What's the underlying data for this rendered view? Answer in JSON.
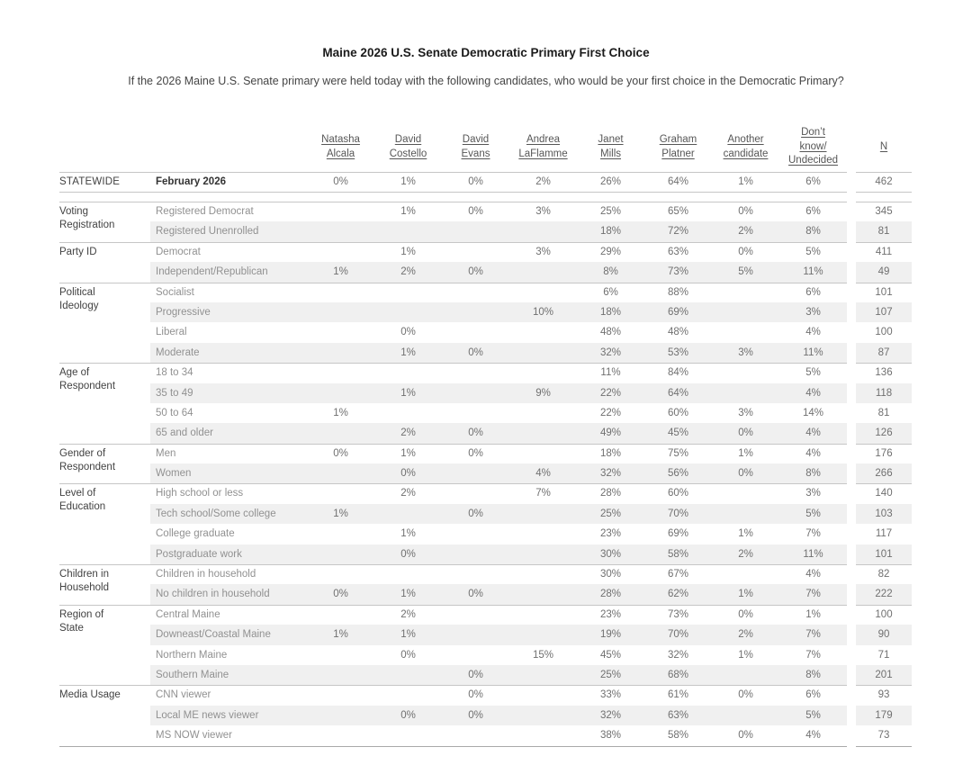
{
  "title": "Maine 2026 U.S. Senate Democratic Primary First Choice",
  "subtitle": "If the 2026 Maine U.S. Senate primary were held today with the following candidates, who would be your first choice in the Democratic Primary?",
  "colors": {
    "title_text": "#1b1b1b",
    "subtitle_text": "#454545",
    "header_text": "#565656",
    "category_text": "#424242",
    "subgroup_text": "#919191",
    "value_text": "#707070",
    "row_shade": "#f0f0f0",
    "grid_line": "#c6c6c6",
    "bottom_line": "#a9a9a9"
  },
  "chart_data": {
    "type": "table",
    "columns": [
      "Natasha Alcala",
      "David Costello",
      "David Evans",
      "Andrea LaFlamme",
      "Janet Mills",
      "Graham Platner",
      "Another candidate",
      "Don’t know/Undecided",
      "N"
    ],
    "column_header_lines": [
      [
        "Natasha",
        "Alcala"
      ],
      [
        "David",
        "Costello"
      ],
      [
        "David",
        "Evans"
      ],
      [
        "Andrea",
        "LaFlamme"
      ],
      [
        "Janet",
        "Mills"
      ],
      [
        "Graham",
        "Platner"
      ],
      [
        "Another",
        "candidate"
      ],
      [
        "Don’t",
        "know/",
        "Undecided"
      ],
      [
        "N"
      ]
    ],
    "groups": [
      {
        "category_lines": [
          "STATEWIDE"
        ],
        "rows": [
          {
            "label": "February 2026",
            "values": [
              "0%",
              "1%",
              "0%",
              "2%",
              "26%",
              "64%",
              "1%",
              "6%"
            ],
            "n": "462"
          }
        ]
      },
      {
        "category_lines": [
          "Voting",
          "Registration"
        ],
        "rows": [
          {
            "label": "Registered Democrat",
            "values": [
              "",
              "1%",
              "0%",
              "3%",
              "25%",
              "65%",
              "0%",
              "6%"
            ],
            "n": "345"
          },
          {
            "label": "Registered Unenrolled",
            "values": [
              "",
              "",
              "",
              "",
              "18%",
              "72%",
              "2%",
              "8%"
            ],
            "n": "81"
          }
        ]
      },
      {
        "category_lines": [
          "Party ID"
        ],
        "rows": [
          {
            "label": "Democrat",
            "values": [
              "",
              "1%",
              "",
              "3%",
              "29%",
              "63%",
              "0%",
              "5%"
            ],
            "n": "411"
          },
          {
            "label": "Independent/Republican",
            "values": [
              "1%",
              "2%",
              "0%",
              "",
              "8%",
              "73%",
              "5%",
              "11%"
            ],
            "n": "49"
          }
        ]
      },
      {
        "category_lines": [
          "Political",
          "Ideology"
        ],
        "rows": [
          {
            "label": "Socialist",
            "values": [
              "",
              "",
              "",
              "",
              "6%",
              "88%",
              "",
              "6%"
            ],
            "n": "101"
          },
          {
            "label": "Progressive",
            "values": [
              "",
              "",
              "",
              "10%",
              "18%",
              "69%",
              "",
              "3%"
            ],
            "n": "107"
          },
          {
            "label": "Liberal",
            "values": [
              "",
              "0%",
              "",
              "",
              "48%",
              "48%",
              "",
              "4%"
            ],
            "n": "100"
          },
          {
            "label": "Moderate",
            "values": [
              "",
              "1%",
              "0%",
              "",
              "32%",
              "53%",
              "3%",
              "11%"
            ],
            "n": "87"
          }
        ]
      },
      {
        "category_lines": [
          "Age of",
          "Respondent"
        ],
        "rows": [
          {
            "label": "18 to 34",
            "values": [
              "",
              "",
              "",
              "",
              "11%",
              "84%",
              "",
              "5%"
            ],
            "n": "136"
          },
          {
            "label": "35 to 49",
            "values": [
              "",
              "1%",
              "",
              "9%",
              "22%",
              "64%",
              "",
              "4%"
            ],
            "n": "118"
          },
          {
            "label": "50 to 64",
            "values": [
              "1%",
              "",
              "",
              "",
              "22%",
              "60%",
              "3%",
              "14%"
            ],
            "n": "81"
          },
          {
            "label": "65 and older",
            "values": [
              "",
              "2%",
              "0%",
              "",
              "49%",
              "45%",
              "0%",
              "4%"
            ],
            "n": "126"
          }
        ]
      },
      {
        "category_lines": [
          "Gender of",
          "Respondent"
        ],
        "rows": [
          {
            "label": "Men",
            "values": [
              "0%",
              "1%",
              "0%",
              "",
              "18%",
              "75%",
              "1%",
              "4%"
            ],
            "n": "176"
          },
          {
            "label": "Women",
            "values": [
              "",
              "0%",
              "",
              "4%",
              "32%",
              "56%",
              "0%",
              "8%"
            ],
            "n": "266"
          }
        ]
      },
      {
        "category_lines": [
          "Level of",
          "Education"
        ],
        "rows": [
          {
            "label": "High school or less",
            "values": [
              "",
              "2%",
              "",
              "7%",
              "28%",
              "60%",
              "",
              "3%"
            ],
            "n": "140"
          },
          {
            "label": "Tech school/Some college",
            "values": [
              "1%",
              "",
              "0%",
              "",
              "25%",
              "70%",
              "",
              "5%"
            ],
            "n": "103"
          },
          {
            "label": "College graduate",
            "values": [
              "",
              "1%",
              "",
              "",
              "23%",
              "69%",
              "1%",
              "7%"
            ],
            "n": "117"
          },
          {
            "label": "Postgraduate work",
            "values": [
              "",
              "0%",
              "",
              "",
              "30%",
              "58%",
              "2%",
              "11%"
            ],
            "n": "101"
          }
        ]
      },
      {
        "category_lines": [
          "Children in",
          "Household"
        ],
        "rows": [
          {
            "label": "Children in household",
            "values": [
              "",
              "",
              "",
              "",
              "30%",
              "67%",
              "",
              "4%"
            ],
            "n": "82"
          },
          {
            "label": "No children in household",
            "values": [
              "0%",
              "1%",
              "0%",
              "",
              "28%",
              "62%",
              "1%",
              "7%"
            ],
            "n": "222"
          }
        ]
      },
      {
        "category_lines": [
          "Region of",
          "State"
        ],
        "rows": [
          {
            "label": "Central Maine",
            "values": [
              "",
              "2%",
              "",
              "",
              "23%",
              "73%",
              "0%",
              "1%"
            ],
            "n": "100"
          },
          {
            "label": "Downeast/Coastal Maine",
            "values": [
              "1%",
              "1%",
              "",
              "",
              "19%",
              "70%",
              "2%",
              "7%"
            ],
            "n": "90"
          },
          {
            "label": "Northern Maine",
            "values": [
              "",
              "0%",
              "",
              "15%",
              "45%",
              "32%",
              "1%",
              "7%"
            ],
            "n": "71"
          },
          {
            "label": "Southern Maine",
            "values": [
              "",
              "",
              "0%",
              "",
              "25%",
              "68%",
              "",
              "8%"
            ],
            "n": "201"
          }
        ]
      },
      {
        "category_lines": [
          "Media Usage"
        ],
        "rows": [
          {
            "label": "CNN viewer",
            "values": [
              "",
              "",
              "0%",
              "",
              "33%",
              "61%",
              "0%",
              "6%"
            ],
            "n": "93"
          },
          {
            "label": "Local ME news viewer",
            "values": [
              "",
              "0%",
              "0%",
              "",
              "32%",
              "63%",
              "",
              "5%"
            ],
            "n": "179"
          },
          {
            "label": "MS NOW viewer",
            "values": [
              "",
              "",
              "",
              "",
              "38%",
              "58%",
              "0%",
              "4%"
            ],
            "n": "73"
          }
        ]
      }
    ]
  }
}
